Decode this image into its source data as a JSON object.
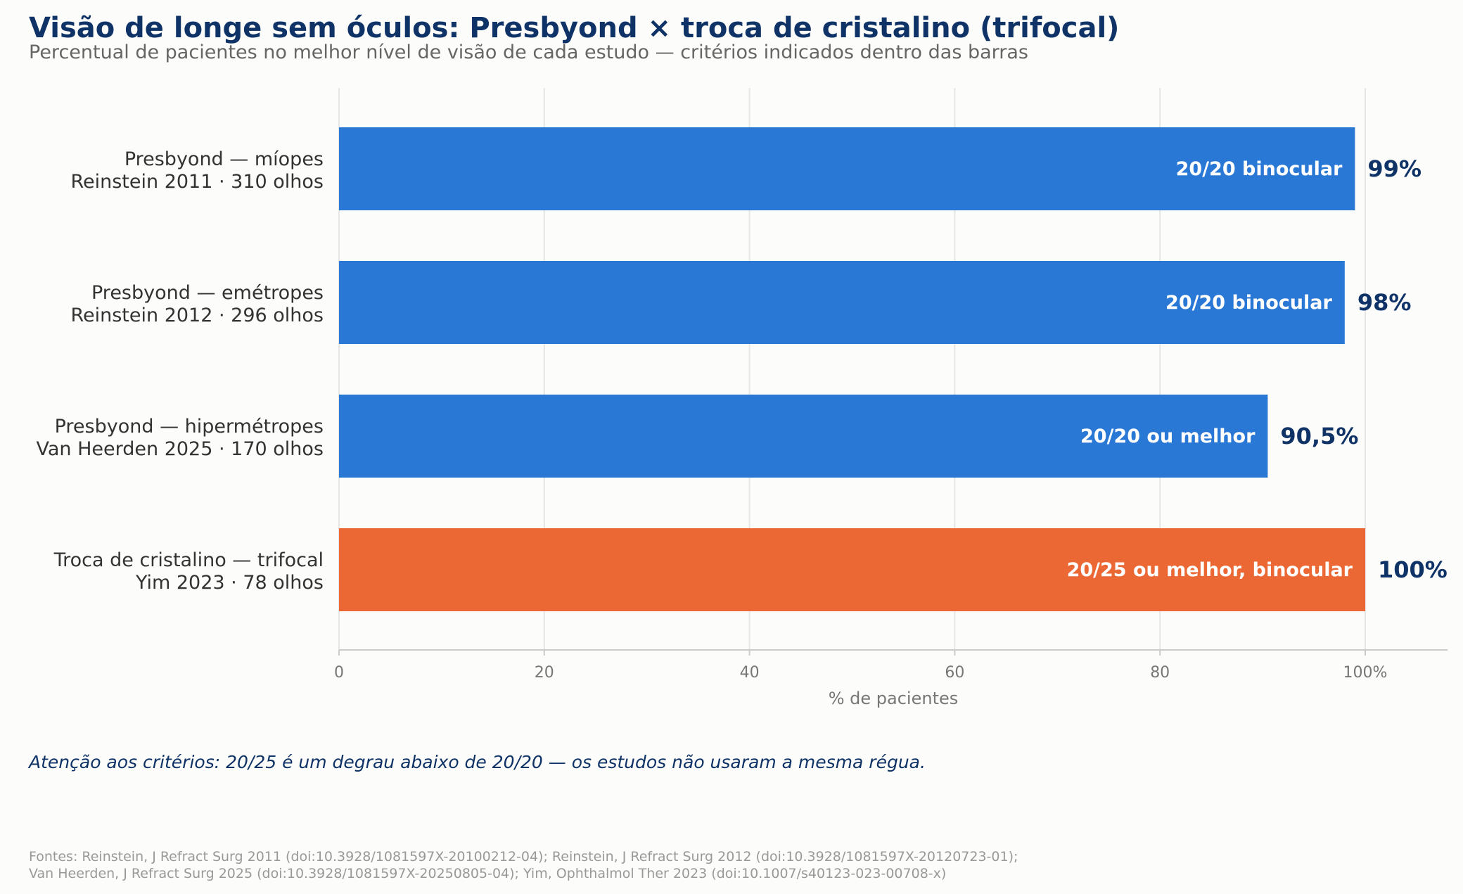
{
  "chart_data": {
    "type": "bar",
    "orientation": "horizontal",
    "title": "Visão de longe sem óculos: Presbyond × troca de cristalino (trifocal)",
    "subtitle": "Percentual de pacientes no melhor nível de visão de cada estudo — critérios indicados dentro das barras",
    "xlabel": "% de pacientes",
    "xlim": [
      0,
      108
    ],
    "xticks": [
      {
        "value": 0,
        "label": "0"
      },
      {
        "value": 20,
        "label": "20"
      },
      {
        "value": 40,
        "label": "40"
      },
      {
        "value": 60,
        "label": "60"
      },
      {
        "value": 80,
        "label": "80"
      },
      {
        "value": 100,
        "label": "100%"
      }
    ],
    "grid": "vertical",
    "bars": [
      {
        "line1": "Presbyond — míopes",
        "line2": "Reinstein 2011 · 310 olhos",
        "value": 99,
        "value_label": "99%",
        "criterion": "20/20 binocular",
        "color": "#2a78d6"
      },
      {
        "line1": "Presbyond — emétropes",
        "line2": "Reinstein 2012 · 296 olhos",
        "value": 98,
        "value_label": "98%",
        "criterion": "20/20 binocular",
        "color": "#2a78d6"
      },
      {
        "line1": "Presbyond — hipermétropes",
        "line2": "Van Heerden 2025 · 170 olhos",
        "value": 90.5,
        "value_label": "90,5%",
        "criterion": "20/20 ou melhor",
        "color": "#2a78d6"
      },
      {
        "line1": "Troca de cristalino — trifocal",
        "line2": "Yim 2023 · 78 olhos",
        "value": 100,
        "value_label": "100%",
        "criterion": "20/25 ou melhor, binocular",
        "color": "#eb6834"
      }
    ],
    "note": "Atenção aos critérios: 20/25 é um degrau abaixo de 20/20 — os estudos não usaram a mesma régua.",
    "sources": [
      "Fontes: Reinstein, J Refract Surg 2011 (doi:10.3928/1081597X-20100212-04); Reinstein, J Refract Surg 2012 (doi:10.3928/1081597X-20120723-01);",
      "Van Heerden, J Refract Surg 2025 (doi:10.3928/1081597X-20250805-04); Yim, Ophthalmol Ther 2023 (doi:10.1007/s40123-023-00708-x)"
    ],
    "colors": {
      "title": "#0f3366",
      "subtitle": "#666666",
      "category_text": "#333333",
      "value_text": "#0f3366",
      "axis_text": "#777777",
      "grid": "#e6e6e6",
      "axis_line": "#cccccc",
      "note": "#0f3366",
      "sources": "#999999"
    }
  }
}
